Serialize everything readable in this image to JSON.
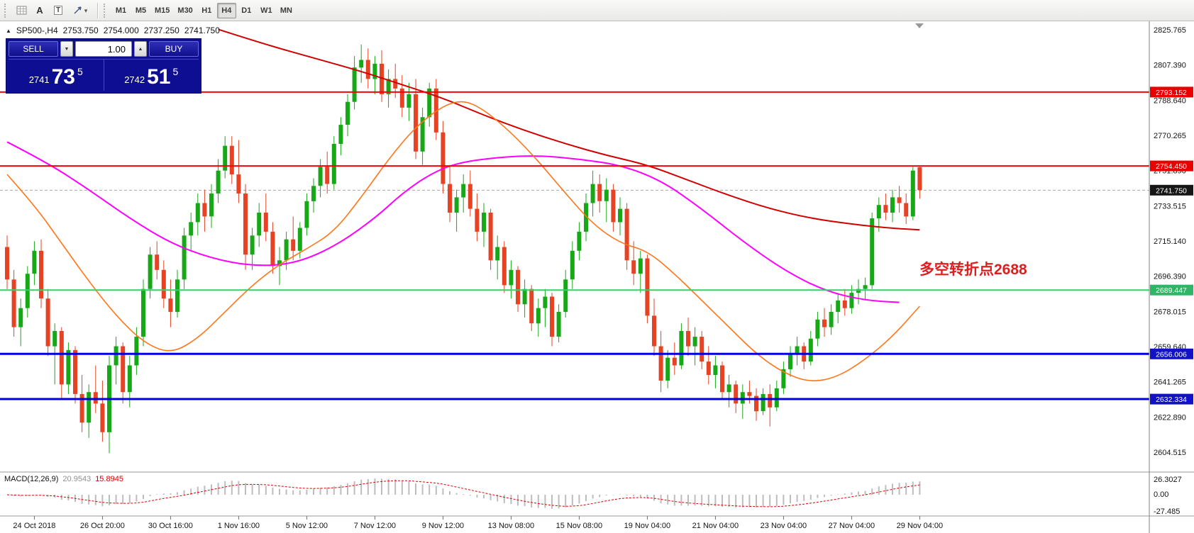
{
  "toolbar": {
    "text_tool_label": "A",
    "label_tool_label": "T",
    "timeframes": [
      {
        "label": "M1",
        "active": false
      },
      {
        "label": "M5",
        "active": false
      },
      {
        "label": "M15",
        "active": false
      },
      {
        "label": "M30",
        "active": false
      },
      {
        "label": "H1",
        "active": false
      },
      {
        "label": "H4",
        "active": true
      },
      {
        "label": "D1",
        "active": false
      },
      {
        "label": "W1",
        "active": false
      },
      {
        "label": "MN",
        "active": false
      }
    ]
  },
  "icons": {
    "collapse": "▲",
    "caret_down": "▾",
    "spin_up": "▲",
    "spin_down": "▼"
  },
  "header": {
    "symbol_info": "SP500-,H4",
    "open": "2753.750",
    "high": "2754.000",
    "low": "2737.250",
    "close": "2741.750"
  },
  "trade_panel": {
    "sell_label": "SELL",
    "buy_label": "BUY",
    "volume": "1.00",
    "sell_price": {
      "big": "2741",
      "pips": "73",
      "frac": "5"
    },
    "buy_price": {
      "big": "2742",
      "pips": "51",
      "frac": "5"
    }
  },
  "annotation": {
    "text": "多空转折点2688",
    "color": "#dd1f1f"
  },
  "price_axis": {
    "ticks": [
      "2825.765",
      "2807.390",
      "2788.640",
      "2770.265",
      "2751.890",
      "2733.515",
      "2715.140",
      "2696.390",
      "2678.015",
      "2659.640",
      "2641.265",
      "2622.890",
      "2604.515"
    ]
  },
  "time_axis": {
    "labels": [
      {
        "text": "24 Oct 2018",
        "bar": 4
      },
      {
        "text": "26 Oct 20:00",
        "bar": 14
      },
      {
        "text": "30 Oct 16:00",
        "bar": 24
      },
      {
        "text": "1 Nov 16:00",
        "bar": 34
      },
      {
        "text": "5 Nov 12:00",
        "bar": 44
      },
      {
        "text": "7 Nov 12:00",
        "bar": 54
      },
      {
        "text": "9 Nov 12:00",
        "bar": 64
      },
      {
        "text": "13 Nov 08:00",
        "bar": 74
      },
      {
        "text": "15 Nov 08:00",
        "bar": 84
      },
      {
        "text": "19 Nov 04:00",
        "bar": 94
      },
      {
        "text": "21 Nov 04:00",
        "bar": 104
      },
      {
        "text": "23 Nov 04:00",
        "bar": 114
      },
      {
        "text": "27 Nov 04:00",
        "bar": 124
      },
      {
        "text": "29 Nov 04:00",
        "bar": 134
      }
    ]
  },
  "price_tags": [
    {
      "text": "2793.152",
      "price": 2793.152,
      "bg": "#e60000"
    },
    {
      "text": "2754.450",
      "price": 2754.45,
      "bg": "#e60000"
    },
    {
      "text": "2741.750",
      "price": 2741.75,
      "bg": "#161616"
    },
    {
      "text": "2689.447",
      "price": 2689.447,
      "bg": "#2fb566"
    },
    {
      "text": "2656.006",
      "price": 2656.006,
      "bg": "#1212c4"
    },
    {
      "text": "2632.334",
      "price": 2632.334,
      "bg": "#1212c4"
    }
  ],
  "macd_panel": {
    "label": "MACD(12,26,9)",
    "main_value": "20.9543",
    "signal_value": "15.8945",
    "axis_ticks": [
      "26.3027",
      "0.00",
      "-27.485"
    ]
  },
  "chart_data": {
    "type": "candlestick",
    "symbol": "SP500-",
    "timeframe": "H4",
    "y_top": 2825.765,
    "y_bottom": 2604.515,
    "bid": 2741.75,
    "colors": {
      "up": "#17a817",
      "down": "#e54323",
      "ma_long": "#d10000",
      "ma_mid": "#ff00ff",
      "ma_fast": "#ff7518",
      "hline_red": "#f00505",
      "hline_green": "#2fd36b",
      "hline_blue": "#0000dd",
      "macd_hist": "#bdbdbd",
      "macd_signal": "#dd0000",
      "bid_line": "#a8a8a8"
    },
    "hlines": [
      {
        "price": 2793.152,
        "color": "#f00505",
        "width": 2
      },
      {
        "price": 2754.45,
        "color": "#f00505",
        "width": 2
      },
      {
        "price": 2689.447,
        "color": "#2fd36b",
        "width": 2
      },
      {
        "price": 2656.006,
        "color": "#0000dd",
        "width": 3
      },
      {
        "price": 2632.334,
        "color": "#0000dd",
        "width": 3
      }
    ],
    "ma_lines": [
      {
        "name": "ma-long-red",
        "color": "#d10000",
        "width": 2,
        "points": [
          [
            31,
            2826
          ],
          [
            38,
            2818
          ],
          [
            45,
            2811
          ],
          [
            52,
            2804
          ],
          [
            58,
            2797
          ],
          [
            64,
            2790
          ],
          [
            70,
            2781
          ],
          [
            76,
            2773
          ],
          [
            82,
            2766
          ],
          [
            88,
            2760
          ],
          [
            94,
            2755
          ],
          [
            100,
            2747
          ],
          [
            106,
            2739
          ],
          [
            112,
            2732
          ],
          [
            118,
            2727
          ],
          [
            124,
            2724
          ],
          [
            129,
            2722
          ],
          [
            134,
            2721
          ]
        ]
      },
      {
        "name": "ma-mid-magenta",
        "color": "#ff00ff",
        "width": 2,
        "points": [
          [
            0,
            2767
          ],
          [
            6,
            2756
          ],
          [
            12,
            2742
          ],
          [
            18,
            2727
          ],
          [
            24,
            2714
          ],
          [
            30,
            2706
          ],
          [
            36,
            2702
          ],
          [
            42,
            2703
          ],
          [
            48,
            2712
          ],
          [
            54,
            2727
          ],
          [
            58,
            2740
          ],
          [
            62,
            2750
          ],
          [
            66,
            2756
          ],
          [
            72,
            2759
          ],
          [
            78,
            2760
          ],
          [
            84,
            2758
          ],
          [
            90,
            2755
          ],
          [
            96,
            2747
          ],
          [
            102,
            2732
          ],
          [
            108,
            2715
          ],
          [
            114,
            2700
          ],
          [
            120,
            2689
          ],
          [
            126,
            2684
          ],
          [
            131,
            2683
          ]
        ]
      },
      {
        "name": "ma-fast-orange",
        "color": "#ff7518",
        "width": 1.6,
        "points": [
          [
            0,
            2750
          ],
          [
            4,
            2734
          ],
          [
            8,
            2714
          ],
          [
            12,
            2694
          ],
          [
            16,
            2676
          ],
          [
            20,
            2662
          ],
          [
            24,
            2656
          ],
          [
            28,
            2664
          ],
          [
            32,
            2678
          ],
          [
            36,
            2692
          ],
          [
            40,
            2703
          ],
          [
            44,
            2711
          ],
          [
            48,
            2720
          ],
          [
            52,
            2738
          ],
          [
            56,
            2758
          ],
          [
            60,
            2775
          ],
          [
            64,
            2786
          ],
          [
            67,
            2789
          ],
          [
            70,
            2784
          ],
          [
            74,
            2772
          ],
          [
            78,
            2757
          ],
          [
            82,
            2740
          ],
          [
            86,
            2724
          ],
          [
            90,
            2714
          ],
          [
            94,
            2710
          ],
          [
            98,
            2698
          ],
          [
            102,
            2684
          ],
          [
            106,
            2670
          ],
          [
            110,
            2656
          ],
          [
            114,
            2646
          ],
          [
            118,
            2641
          ],
          [
            122,
            2644
          ],
          [
            126,
            2653
          ],
          [
            130,
            2665
          ],
          [
            134,
            2681
          ]
        ]
      }
    ],
    "macd": {
      "fast": 12,
      "slow": 26,
      "signal": 9
    },
    "ohlc": [
      [
        2712,
        2718,
        2690,
        2695
      ],
      [
        2695,
        2700,
        2665,
        2670
      ],
      [
        2670,
        2685,
        2660,
        2680
      ],
      [
        2680,
        2702,
        2675,
        2698
      ],
      [
        2698,
        2715,
        2692,
        2710
      ],
      [
        2710,
        2716,
        2680,
        2685
      ],
      [
        2685,
        2690,
        2655,
        2660
      ],
      [
        2660,
        2672,
        2640,
        2668
      ],
      [
        2668,
        2670,
        2632,
        2640
      ],
      [
        2640,
        2662,
        2635,
        2658
      ],
      [
        2658,
        2660,
        2630,
        2635
      ],
      [
        2635,
        2645,
        2615,
        2620
      ],
      [
        2620,
        2640,
        2612,
        2636
      ],
      [
        2636,
        2650,
        2625,
        2630
      ],
      [
        2630,
        2642,
        2610,
        2615
      ],
      [
        2615,
        2655,
        2604,
        2650
      ],
      [
        2650,
        2665,
        2640,
        2660
      ],
      [
        2660,
        2662,
        2630,
        2636
      ],
      [
        2636,
        2655,
        2628,
        2650
      ],
      [
        2650,
        2670,
        2645,
        2665
      ],
      [
        2665,
        2695,
        2660,
        2690
      ],
      [
        2690,
        2712,
        2685,
        2708
      ],
      [
        2708,
        2715,
        2695,
        2700
      ],
      [
        2700,
        2705,
        2680,
        2685
      ],
      [
        2685,
        2695,
        2670,
        2678
      ],
      [
        2678,
        2700,
        2675,
        2695
      ],
      [
        2695,
        2722,
        2690,
        2718
      ],
      [
        2718,
        2730,
        2710,
        2725
      ],
      [
        2725,
        2740,
        2718,
        2735
      ],
      [
        2735,
        2742,
        2720,
        2728
      ],
      [
        2728,
        2745,
        2722,
        2740
      ],
      [
        2740,
        2758,
        2735,
        2752
      ],
      [
        2752,
        2770,
        2748,
        2765
      ],
      [
        2765,
        2770,
        2745,
        2750
      ],
      [
        2750,
        2768,
        2735,
        2740
      ],
      [
        2740,
        2745,
        2700,
        2708
      ],
      [
        2708,
        2722,
        2700,
        2718
      ],
      [
        2718,
        2735,
        2712,
        2730
      ],
      [
        2730,
        2740,
        2715,
        2720
      ],
      [
        2720,
        2725,
        2698,
        2702
      ],
      [
        2702,
        2712,
        2692,
        2705
      ],
      [
        2705,
        2720,
        2700,
        2716
      ],
      [
        2716,
        2728,
        2705,
        2710
      ],
      [
        2710,
        2725,
        2706,
        2722
      ],
      [
        2722,
        2740,
        2718,
        2736
      ],
      [
        2736,
        2748,
        2730,
        2744
      ],
      [
        2744,
        2758,
        2738,
        2754
      ],
      [
        2754,
        2762,
        2740,
        2745
      ],
      [
        2745,
        2770,
        2742,
        2766
      ],
      [
        2766,
        2780,
        2760,
        2776
      ],
      [
        2776,
        2792,
        2770,
        2788
      ],
      [
        2788,
        2812,
        2784,
        2806
      ],
      [
        2806,
        2818,
        2798,
        2810
      ],
      [
        2810,
        2816,
        2795,
        2800
      ],
      [
        2800,
        2812,
        2792,
        2808
      ],
      [
        2808,
        2815,
        2788,
        2792
      ],
      [
        2792,
        2805,
        2785,
        2800
      ],
      [
        2800,
        2808,
        2790,
        2795
      ],
      [
        2795,
        2802,
        2780,
        2785
      ],
      [
        2785,
        2798,
        2778,
        2792
      ],
      [
        2792,
        2800,
        2758,
        2762
      ],
      [
        2762,
        2785,
        2755,
        2780
      ],
      [
        2780,
        2798,
        2775,
        2795
      ],
      [
        2795,
        2800,
        2768,
        2772
      ],
      [
        2772,
        2778,
        2740,
        2745
      ],
      [
        2745,
        2755,
        2725,
        2730
      ],
      [
        2730,
        2742,
        2720,
        2738
      ],
      [
        2738,
        2750,
        2730,
        2745
      ],
      [
        2745,
        2752,
        2728,
        2732
      ],
      [
        2732,
        2740,
        2715,
        2720
      ],
      [
        2720,
        2735,
        2712,
        2730
      ],
      [
        2730,
        2732,
        2700,
        2705
      ],
      [
        2705,
        2718,
        2695,
        2712
      ],
      [
        2712,
        2715,
        2688,
        2692
      ],
      [
        2692,
        2705,
        2685,
        2700
      ],
      [
        2700,
        2702,
        2678,
        2682
      ],
      [
        2682,
        2695,
        2675,
        2690
      ],
      [
        2690,
        2692,
        2668,
        2672
      ],
      [
        2672,
        2685,
        2665,
        2680
      ],
      [
        2680,
        2690,
        2670,
        2686
      ],
      [
        2686,
        2688,
        2660,
        2665
      ],
      [
        2665,
        2682,
        2662,
        2678
      ],
      [
        2678,
        2700,
        2675,
        2695
      ],
      [
        2695,
        2715,
        2690,
        2710
      ],
      [
        2710,
        2725,
        2705,
        2720
      ],
      [
        2720,
        2740,
        2715,
        2735
      ],
      [
        2735,
        2752,
        2728,
        2745
      ],
      [
        2745,
        2750,
        2730,
        2736
      ],
      [
        2736,
        2748,
        2725,
        2742
      ],
      [
        2742,
        2745,
        2720,
        2725
      ],
      [
        2725,
        2738,
        2718,
        2732
      ],
      [
        2732,
        2735,
        2700,
        2705
      ],
      [
        2705,
        2715,
        2692,
        2698
      ],
      [
        2698,
        2710,
        2688,
        2706
      ],
      [
        2706,
        2708,
        2672,
        2676
      ],
      [
        2676,
        2685,
        2655,
        2660
      ],
      [
        2660,
        2668,
        2636,
        2642
      ],
      [
        2642,
        2658,
        2638,
        2654
      ],
      [
        2654,
        2662,
        2645,
        2650
      ],
      [
        2650,
        2672,
        2648,
        2668
      ],
      [
        2668,
        2675,
        2655,
        2660
      ],
      [
        2660,
        2670,
        2650,
        2665
      ],
      [
        2665,
        2668,
        2648,
        2652
      ],
      [
        2652,
        2660,
        2640,
        2645
      ],
      [
        2645,
        2655,
        2638,
        2650
      ],
      [
        2650,
        2652,
        2632,
        2636
      ],
      [
        2636,
        2645,
        2628,
        2640
      ],
      [
        2640,
        2642,
        2625,
        2630
      ],
      [
        2630,
        2640,
        2622,
        2636
      ],
      [
        2636,
        2642,
        2630,
        2634
      ],
      [
        2634,
        2638,
        2621,
        2626
      ],
      [
        2626,
        2638,
        2624,
        2635
      ],
      [
        2635,
        2640,
        2618,
        2628
      ],
      [
        2628,
        2642,
        2626,
        2638
      ],
      [
        2638,
        2652,
        2635,
        2648
      ],
      [
        2648,
        2660,
        2644,
        2656
      ],
      [
        2656,
        2665,
        2650,
        2660
      ],
      [
        2660,
        2662,
        2648,
        2652
      ],
      [
        2652,
        2668,
        2650,
        2664
      ],
      [
        2664,
        2678,
        2660,
        2674
      ],
      [
        2674,
        2680,
        2665,
        2670
      ],
      [
        2670,
        2682,
        2666,
        2678
      ],
      [
        2678,
        2688,
        2672,
        2684
      ],
      [
        2684,
        2690,
        2676,
        2680
      ],
      [
        2680,
        2692,
        2677,
        2688
      ],
      [
        2688,
        2695,
        2682,
        2690
      ],
      [
        2690,
        2696,
        2684,
        2692
      ],
      [
        2692,
        2730,
        2690,
        2727
      ],
      [
        2727,
        2738,
        2720,
        2734
      ],
      [
        2734,
        2740,
        2726,
        2730
      ],
      [
        2730,
        2742,
        2725,
        2738
      ],
      [
        2738,
        2744,
        2730,
        2735
      ],
      [
        2735,
        2740,
        2724,
        2728
      ],
      [
        2728,
        2754,
        2726,
        2752
      ],
      [
        2753.75,
        2754,
        2737.25,
        2741.75
      ]
    ]
  }
}
